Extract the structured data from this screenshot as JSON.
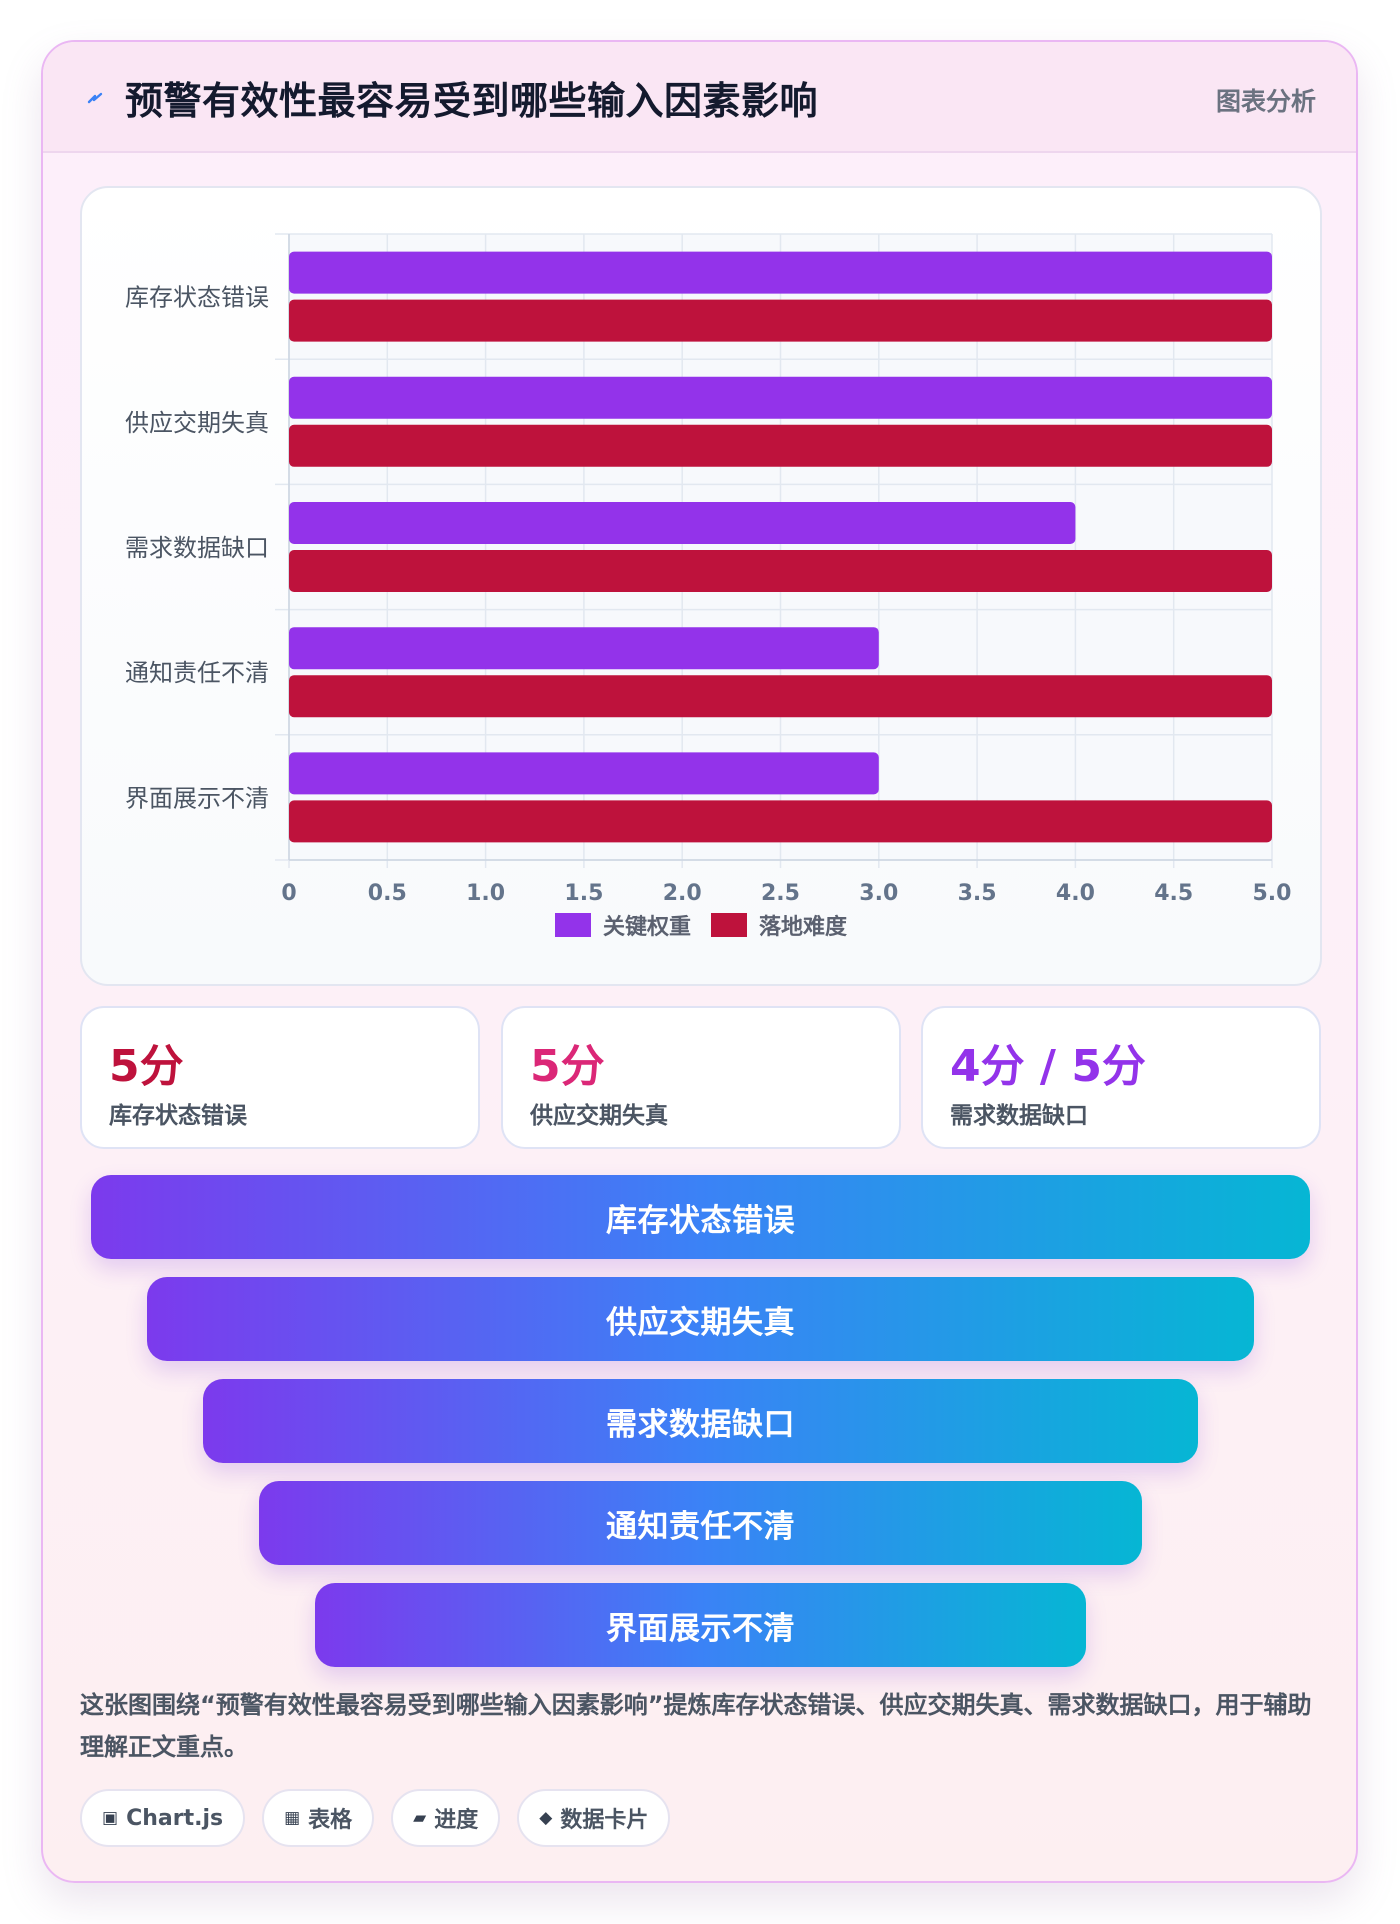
{
  "header": {
    "icon": "lightning-icon",
    "title": "预警有效性最容易受到哪些输入因素影响",
    "tag": "图表分析"
  },
  "chart_data": {
    "type": "bar",
    "orientation": "horizontal",
    "categories": [
      "库存状态错误",
      "供应交期失真",
      "需求数据缺口",
      "通知责任不清",
      "界面展示不清"
    ],
    "series": [
      {
        "name": "关键权重",
        "color": "#9333ea",
        "values": [
          5,
          5,
          4,
          3,
          3
        ]
      },
      {
        "name": "落地难度",
        "color": "#be123c",
        "values": [
          5,
          5,
          5,
          5,
          5
        ]
      }
    ],
    "xlim": [
      0,
      5
    ],
    "xticks": [
      "0",
      "0.5",
      "1.0",
      "1.5",
      "2.0",
      "2.5",
      "3.0",
      "3.5",
      "4.0",
      "4.5",
      "5.0"
    ],
    "grid": true,
    "legend_position": "bottom"
  },
  "stats": [
    {
      "value": "5分",
      "label": "库存状态错误",
      "color": "#be123c"
    },
    {
      "value": "5分",
      "label": "供应交期失真",
      "color": "#db2777"
    },
    {
      "value": "4分 / 5分",
      "label": "需求数据缺口",
      "color": "#9333ea"
    }
  ],
  "funnel": [
    {
      "label": "库存状态错误"
    },
    {
      "label": "供应交期失真"
    },
    {
      "label": "需求数据缺口"
    },
    {
      "label": "通知责任不清"
    },
    {
      "label": "界面展示不清"
    }
  ],
  "summary": "这张图围绕“预警有效性最容易受到哪些输入因素影响”提炼库存状态错误、供应交期失真、需求数据缺口，用于辅助理解正文重点。",
  "chips": [
    {
      "icon": "chip-icon",
      "glyph": "▣",
      "label": "Chart.js"
    },
    {
      "icon": "grid-icon",
      "glyph": "▦",
      "label": "表格"
    },
    {
      "icon": "progress-icon",
      "glyph": "▰",
      "label": "进度"
    },
    {
      "icon": "diamond-icon",
      "glyph": "◆",
      "label": "数据卡片"
    }
  ]
}
